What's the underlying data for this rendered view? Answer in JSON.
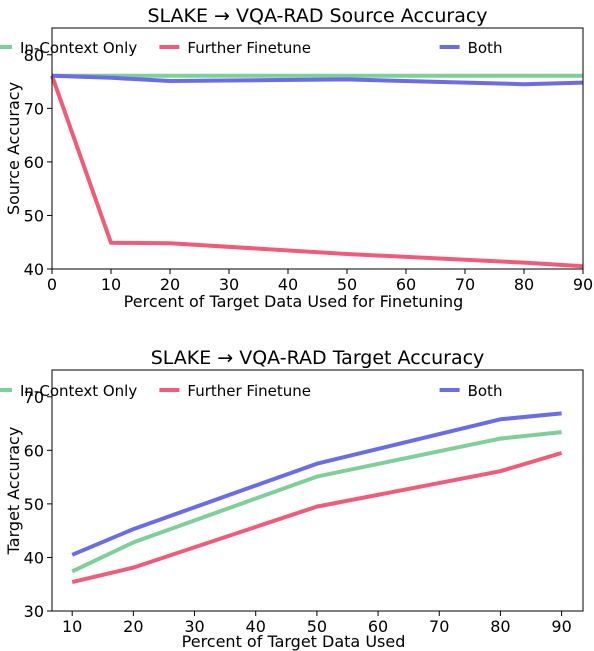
{
  "chart_data": [
    {
      "type": "line",
      "title": "SLAKE → VQA-RAD Source Accuracy",
      "xlabel": "Percent of Target Data Used for Finetuning",
      "ylabel": "Source Accuracy",
      "xlim": [
        0,
        90
      ],
      "ylim": [
        40,
        85
      ],
      "xticks": [
        "0",
        "10",
        "20",
        "30",
        "40",
        "50",
        "60",
        "70",
        "80",
        "90"
      ],
      "yticks": [
        "40",
        "50",
        "60",
        "70",
        "80"
      ],
      "grid": false,
      "legend": "top-right",
      "series": [
        {
          "name": "In-Context Only",
          "color": "#7fcf9a",
          "x": [
            0,
            10,
            20,
            50,
            80,
            90
          ],
          "y": [
            76.1,
            76.1,
            76.1,
            76.1,
            76.1,
            76.1
          ]
        },
        {
          "name": "Further Finetune",
          "color": "#f25a7a",
          "x": [
            0,
            10,
            20,
            50,
            80,
            90
          ],
          "y": [
            76.1,
            44.9,
            44.8,
            42.8,
            41.2,
            40.5
          ]
        },
        {
          "name": "Both",
          "color": "#6b6de8",
          "x": [
            0,
            10,
            20,
            50,
            80,
            90
          ],
          "y": [
            76.1,
            75.7,
            75.1,
            75.4,
            74.5,
            74.8
          ]
        }
      ]
    },
    {
      "type": "line",
      "title": "SLAKE → VQA-RAD Target Accuracy",
      "xlabel": "Percent of Target Data Used",
      "ylabel": "Target Accuracy",
      "xlim": [
        6.7,
        93.5
      ],
      "ylim": [
        30,
        75
      ],
      "xticks": [
        "10",
        "20",
        "30",
        "40",
        "50",
        "60",
        "70",
        "80",
        "90"
      ],
      "yticks": [
        "30",
        "40",
        "50",
        "60",
        "70"
      ],
      "grid": false,
      "legend": "top-right",
      "series": [
        {
          "name": "In-Context Only",
          "color": "#7fcf9a",
          "x": [
            10,
            20,
            50,
            80,
            90
          ],
          "y": [
            37.4,
            42.8,
            55.1,
            62.2,
            63.4
          ]
        },
        {
          "name": "Further Finetune",
          "color": "#f25a7a",
          "x": [
            10,
            20,
            50,
            80,
            90
          ],
          "y": [
            35.4,
            38.1,
            49.5,
            56.1,
            59.5
          ]
        },
        {
          "name": "Both",
          "color": "#6b6de8",
          "x": [
            10,
            20,
            50,
            80,
            90
          ],
          "y": [
            40.5,
            45.3,
            57.5,
            65.8,
            66.9
          ]
        }
      ]
    }
  ]
}
